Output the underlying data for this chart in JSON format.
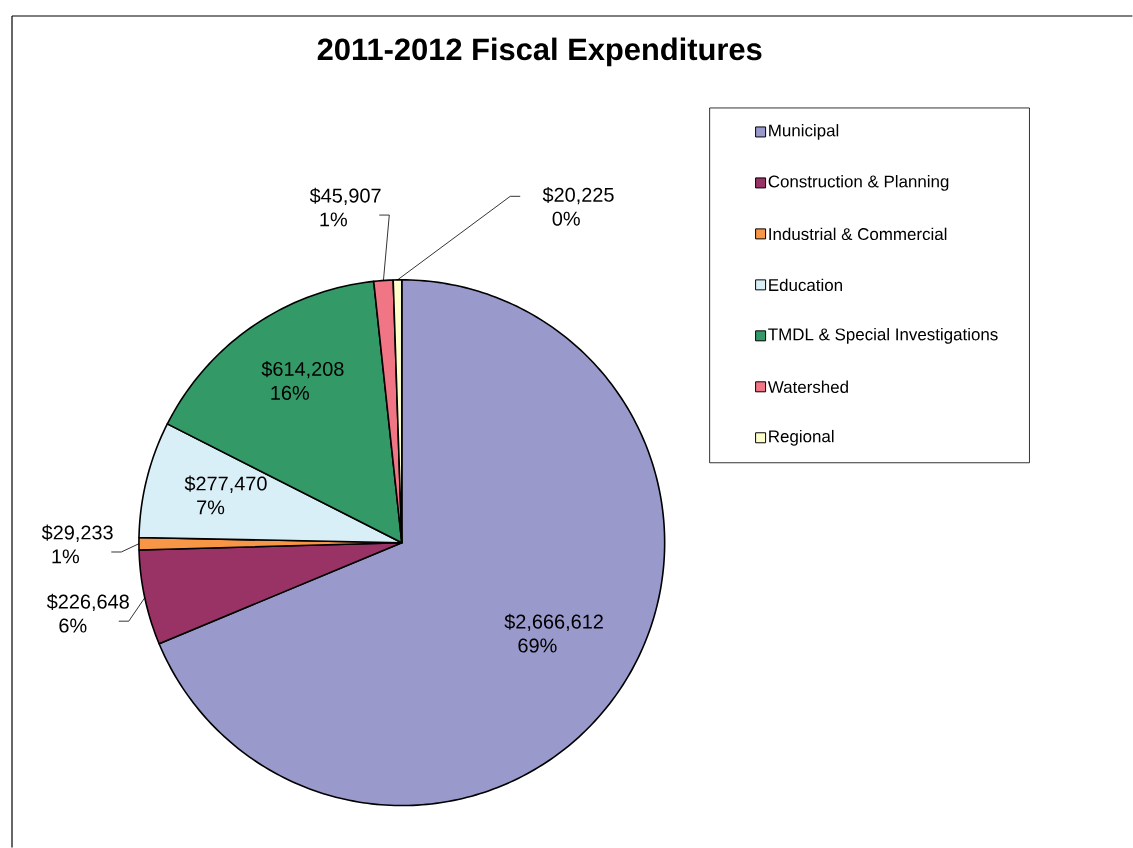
{
  "chart_data": {
    "type": "pie",
    "title": "2011-2012 Fiscal Expenditures",
    "categories": [
      "Municipal",
      "Construction & Planning",
      "Industrial & Commercial",
      "Education",
      "TMDL & Special Investigations",
      "Watershed",
      "Regional"
    ],
    "values": [
      2666612,
      226648,
      29233,
      277470,
      614208,
      45907,
      20225
    ],
    "colors": [
      "#9999cc",
      "#993366",
      "#f79646",
      "#d9eff8",
      "#339966",
      "#f07585",
      "#ffffcc"
    ],
    "value_labels": [
      "$2,666,612 69%",
      "$226,648 6%",
      "$29,233 1%",
      "$277,470 7%",
      "$614,208 16%",
      "$45,907 1%",
      "$20,225 0%"
    ],
    "legend": "right"
  }
}
